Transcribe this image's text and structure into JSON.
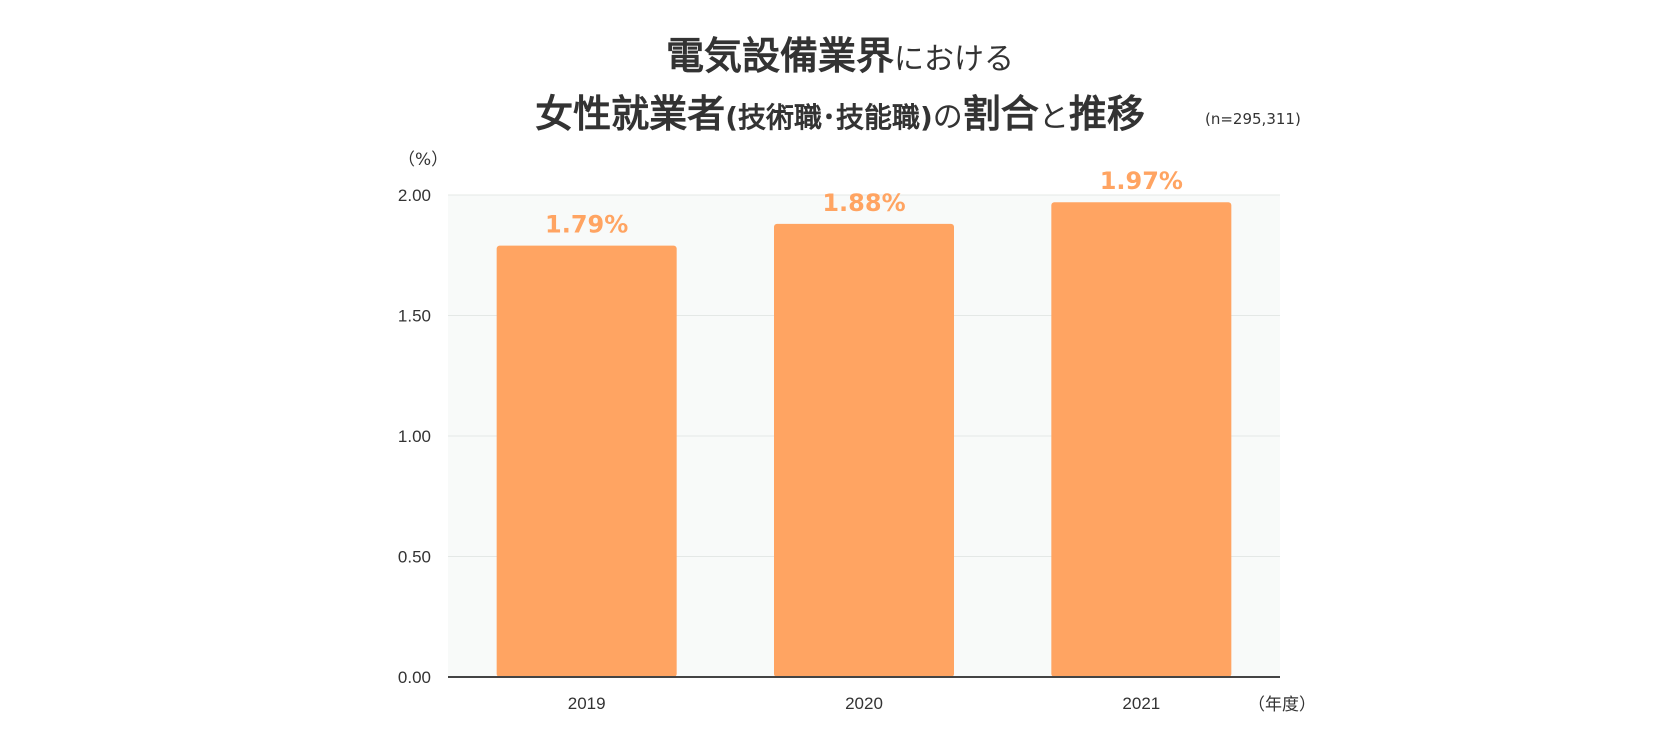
{
  "chart_data": {
    "type": "bar",
    "title_line1_main": "電気設備業界",
    "title_line1_sub": "における",
    "title_line2_main": "女性就業者",
    "title_line2_paren": "(技術職･技能職)",
    "title_line2_no": "の",
    "title_line2_main2": "割合",
    "title_line2_to": "と",
    "title_line2_main3": "推移",
    "note": "(n=295,311)",
    "y_unit": "（%）",
    "x_unit": "（年度）",
    "categories": [
      "2019",
      "2020",
      "2021"
    ],
    "values": [
      1.79,
      1.88,
      1.97
    ],
    "value_labels": [
      "1.79%",
      "1.88%",
      "1.97%"
    ],
    "y_ticks": [
      "0.00",
      "0.50",
      "1.00",
      "1.50",
      "2.00"
    ],
    "y_tick_values": [
      0,
      0.5,
      1.0,
      1.5,
      2.0
    ],
    "ylim": [
      0,
      2.0
    ],
    "grid": true,
    "colors": {
      "bar": "#FFA462",
      "label": "#FFA462",
      "plot_bg": "#F8FAF9",
      "axis": "#444444",
      "grid": "#E4E8E6"
    }
  }
}
